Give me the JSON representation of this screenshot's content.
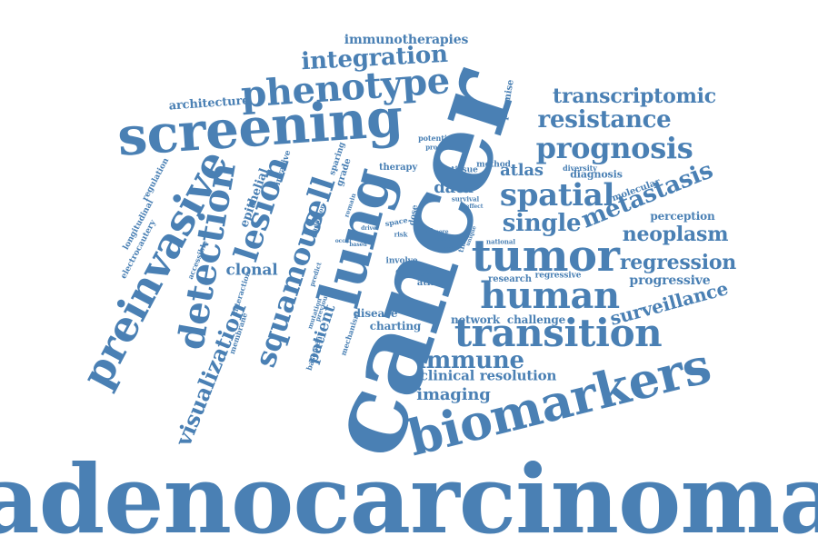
{
  "color": "#4a80b4",
  "words": {
    "adenocarcinoma": "adenocarcinoma",
    "cancer": "cancer",
    "lung": "lung",
    "biomarkers": "biomarkers",
    "screening": "screening",
    "preinvasive": "preinvasive",
    "tumor": "tumor",
    "human": "human",
    "transition": "transition",
    "detection": "detection",
    "phenotype": "phenotype",
    "spatial": "spatial",
    "lesion": "lesion",
    "cell": "cell",
    "squamous": "squamous",
    "prognosis": "prognosis",
    "resistance": "resistance",
    "metastasis": "metastasis",
    "single": "single",
    "integration": "integration",
    "visualization": "visualization",
    "immune": "immune",
    "transcriptomic": "transcriptomic",
    "regression": "regression",
    "neoplasm": "neoplasm",
    "surveillance": "surveillance",
    "imaging": "imaging",
    "immunotherapies": "immunotherapies",
    "data": "data",
    "atlas": "atlas",
    "clinical": "clinical",
    "resolution": "resolution",
    "progressive": "progressive",
    "clonal": "clonal",
    "patient": "patient",
    "architecture": "architecture",
    "epithelial": "epithelial",
    "perception": "perception",
    "disease": "disease",
    "charting": "charting",
    "network": "network",
    "challenge": "challenge",
    "research": "research",
    "regressive": "regressive",
    "molecular": "molecular",
    "diagnosis": "diagnosis",
    "diversity": "diversity",
    "promise": "promise",
    "therapy": "therapy",
    "tissue": "tissue",
    "method": "method",
    "grade": "grade",
    "sparing": "sparing",
    "invasive": "invasive",
    "regulation": "regulation",
    "longitudinal": "longitudinal",
    "electrocautery": "electrocautery",
    "accessible": "accessible",
    "interaction": "interaction",
    "membrane": "membrane",
    "basement": "basement",
    "mechanism": "mechanism",
    "mutation": "mutation",
    "previous": "previous",
    "predict": "predict",
    "addition": "addition",
    "remain": "remain",
    "dose": "dose",
    "space": "space",
    "trial": "trial",
    "risk": "risk",
    "stage": "stage",
    "driver": "driver",
    "based": "based",
    "involve": "involve",
    "change": "change",
    "atlases": "atlases",
    "potential": "potential",
    "progress": "progress",
    "survival": "survival",
    "effect": "effect",
    "time": "time",
    "more": "more",
    "better": "better",
    "unique": "unique",
    "national": "national",
    "novel": "novel",
    "occur": "occur"
  }
}
